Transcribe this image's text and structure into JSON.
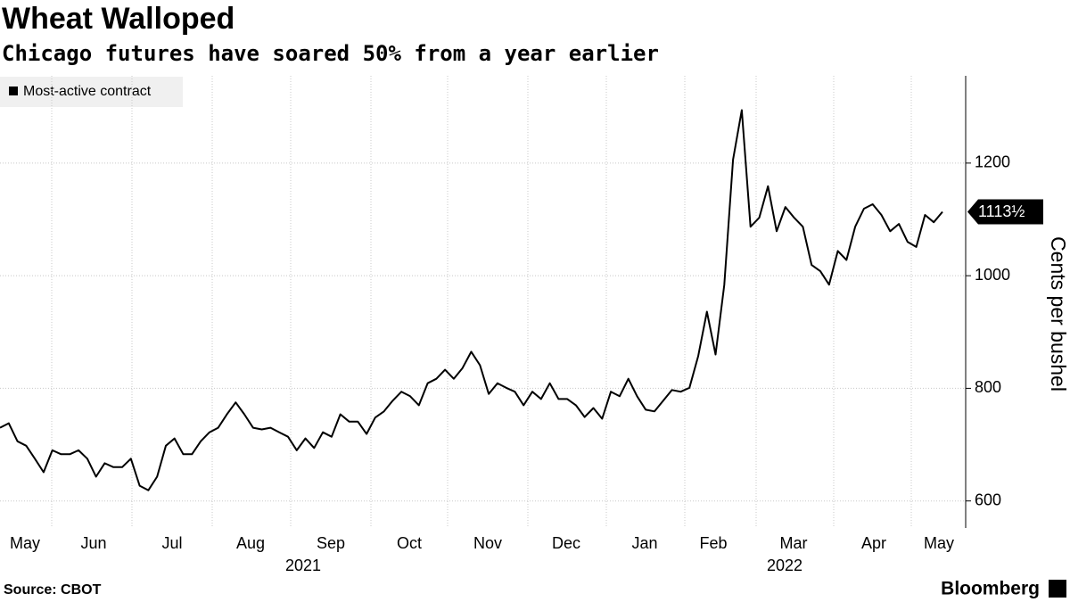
{
  "chart_data": {
    "type": "line",
    "title": "Wheat Walloped",
    "subtitle": "Chicago futures have soared 50% from a year earlier",
    "ylabel": "Cents per bushel",
    "source": "Source: CBOT",
    "brand": "Bloomberg",
    "month_labels": [
      "May",
      "Jun",
      "Jul",
      "Aug",
      "Sep",
      "Oct",
      "Nov",
      "Dec",
      "Jan",
      "Feb",
      "Mar",
      "Apr",
      "May"
    ],
    "year_labels": [
      "2021",
      "2022"
    ],
    "ylim": [
      552,
      1355
    ],
    "yticks": [
      600,
      800,
      1000,
      1200
    ],
    "grid": true,
    "series": [
      {
        "name": "Most-active contract",
        "color": "#000000",
        "values": [
          730,
          738,
          706,
          698,
          675,
          651,
          690,
          683,
          683,
          690,
          675,
          643,
          667,
          660,
          660,
          675,
          627,
          619,
          643,
          698,
          711,
          683,
          683,
          706,
          722,
          730,
          754,
          775,
          754,
          730,
          727,
          730,
          722,
          714,
          690,
          711,
          694,
          722,
          714,
          754,
          741,
          741,
          719,
          748,
          759,
          778,
          794,
          786,
          770,
          809,
          817,
          833,
          817,
          836,
          865,
          841,
          790,
          809,
          801,
          794,
          770,
          794,
          781,
          809,
          781,
          781,
          770,
          749,
          765,
          746,
          794,
          786,
          817,
          786,
          762,
          759,
          778,
          797,
          794,
          801,
          857,
          936,
          860,
          984,
          1206,
          1294,
          1087,
          1103,
          1159,
          1079,
          1122,
          1103,
          1087,
          1019,
          1008,
          984,
          1044,
          1028,
          1087,
          1119,
          1127,
          1108,
          1079,
          1092,
          1060,
          1051,
          1108,
          1095,
          1113.5
        ],
        "last_label": "1113½"
      }
    ]
  }
}
